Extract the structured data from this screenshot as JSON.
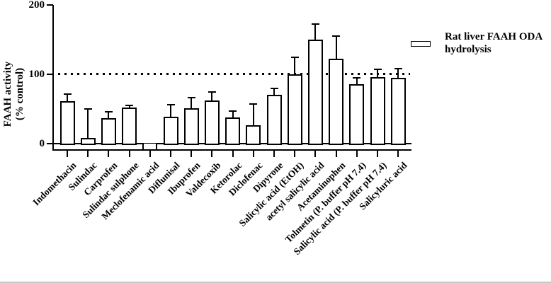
{
  "figure": {
    "background": "#ffffff",
    "axis_color": "#000000",
    "bar_fill": "#ffffff"
  },
  "chart_data": {
    "type": "bar",
    "title": "",
    "ylabel_line1": "FAAH activity",
    "ylabel_line2": "(% control)",
    "xlabel": "",
    "y_ticks": [
      0,
      100,
      200
    ],
    "ylim": [
      -15,
      200
    ],
    "grid": "off",
    "reference_line": {
      "value": 100,
      "style": "dotted"
    },
    "legend": {
      "position": "right",
      "line1": "Rat liver FAAH ODA",
      "line2": "hydrolysis",
      "swatch": "open-bar"
    },
    "bars": [
      {
        "label": "Indomethacin",
        "value": 61,
        "error_top": 71
      },
      {
        "label": "Sulindac",
        "value": 8,
        "error_top": 50
      },
      {
        "label": "Carprofen",
        "value": 37,
        "error_top": 46
      },
      {
        "label": "Sulindac sulphone",
        "value": 52,
        "error_top": 55
      },
      {
        "label": "Meclofenamic acid",
        "value": -15,
        "error_top": null
      },
      {
        "label": "Diflunisal",
        "value": 39,
        "error_top": 56
      },
      {
        "label": "Ibuprofen",
        "value": 51,
        "error_top": 66
      },
      {
        "label": "Valdecoxib",
        "value": 62,
        "error_top": 74
      },
      {
        "label": "Ketorolac",
        "value": 38,
        "error_top": 47
      },
      {
        "label": "Diclofenac",
        "value": 27,
        "error_top": 57
      },
      {
        "label": "Dipyrone",
        "value": 70,
        "error_top": 80
      },
      {
        "label": "Salicylic acid (EtOH)",
        "value": 100,
        "error_top": 125
      },
      {
        "label": "acetyl salicylic acid",
        "value": 150,
        "error_top": 172
      },
      {
        "label": "Acetaminophen",
        "value": 122,
        "error_top": 155
      },
      {
        "label": "Tolmetin (P. buffer pH 7.4)",
        "value": 86,
        "error_top": 95
      },
      {
        "label": "Salicylic acid (P. buffer pH 7.4)",
        "value": 96,
        "error_top": 107
      },
      {
        "label": "Salicyluric acid",
        "value": 95,
        "error_top": 108
      }
    ]
  }
}
